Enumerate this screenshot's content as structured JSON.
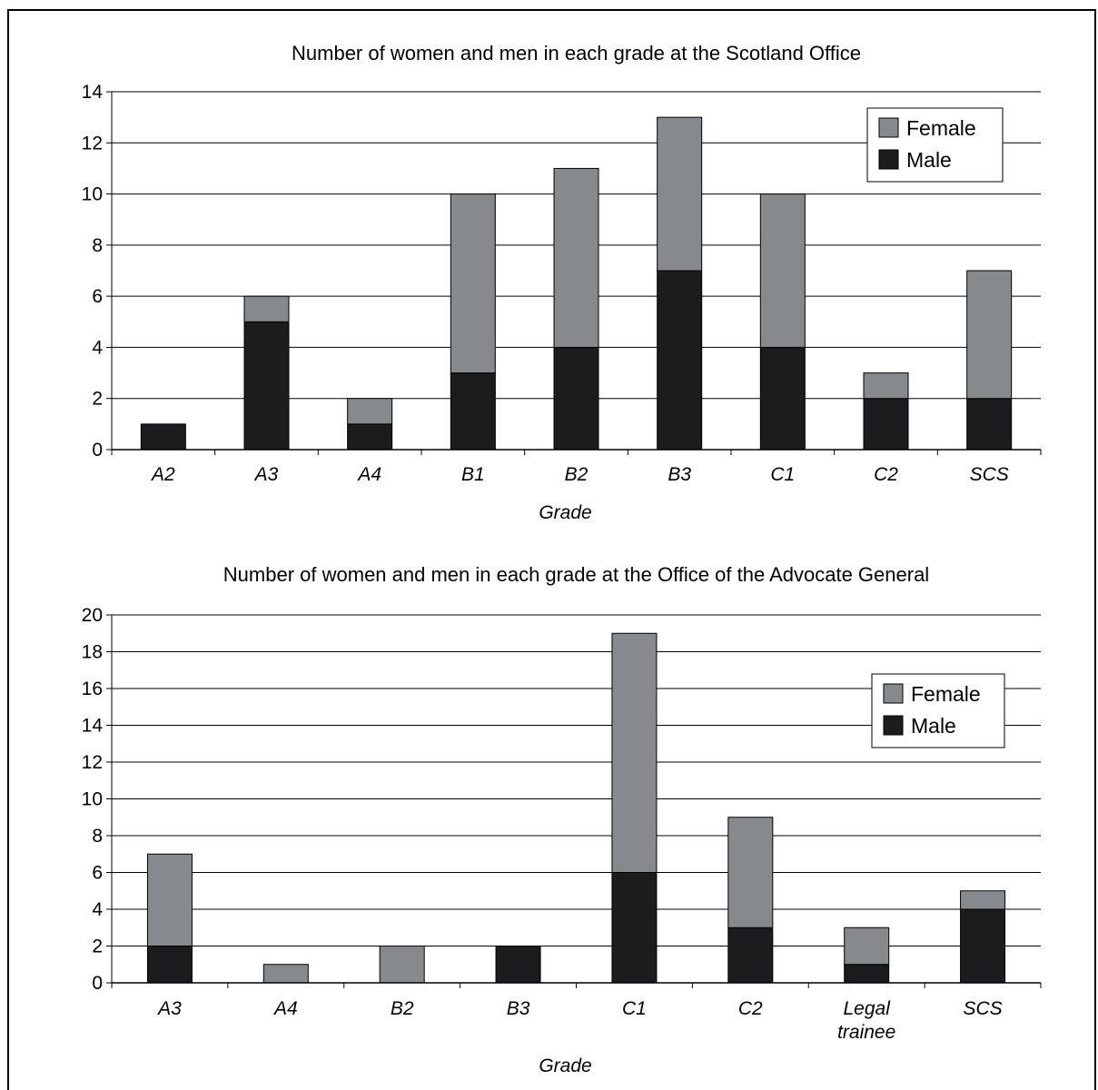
{
  "colors": {
    "female": "#878a8c",
    "male": "#1c1b1d",
    "grid": "#000000",
    "background": "#ffffff"
  },
  "chart_data": [
    {
      "type": "bar",
      "stacked": true,
      "title": "Number of women and men in each grade at the Scotland Office",
      "xlabel": "Grade",
      "ylabel": "",
      "ylim": [
        0,
        14
      ],
      "yticks": [
        0,
        2,
        4,
        6,
        8,
        10,
        12,
        14
      ],
      "grid": true,
      "legend_position": "top-right",
      "categories": [
        "A2",
        "A3",
        "A4",
        "B1",
        "B2",
        "B3",
        "C1",
        "C2",
        "SCS"
      ],
      "series": [
        {
          "name": "Male",
          "color": "#1c1b1d",
          "values": [
            1,
            5,
            1,
            3,
            4,
            7,
            4,
            2,
            2
          ]
        },
        {
          "name": "Female",
          "color": "#878a8c",
          "values": [
            0,
            1,
            1,
            7,
            7,
            6,
            6,
            1,
            5
          ]
        }
      ],
      "legend": [
        "Female",
        "Male"
      ]
    },
    {
      "type": "bar",
      "stacked": true,
      "title": "Number of women and men in each grade at the Office of the Advocate General",
      "xlabel": "Grade",
      "ylabel": "",
      "ylim": [
        0,
        20
      ],
      "yticks": [
        0,
        2,
        4,
        6,
        8,
        10,
        12,
        14,
        16,
        18,
        20
      ],
      "grid": true,
      "legend_position": "top-right",
      "categories": [
        "A3",
        "A4",
        "B2",
        "B3",
        "C1",
        "C2",
        "Legal trainee",
        "SCS"
      ],
      "category_lines": [
        [
          "A3"
        ],
        [
          "A4"
        ],
        [
          "B2"
        ],
        [
          "B3"
        ],
        [
          "C1"
        ],
        [
          "C2"
        ],
        [
          "Legal",
          "trainee"
        ],
        [
          "SCS"
        ]
      ],
      "series": [
        {
          "name": "Male",
          "color": "#1c1b1d",
          "values": [
            2,
            0,
            0,
            2,
            6,
            3,
            1,
            4
          ]
        },
        {
          "name": "Female",
          "color": "#878a8c",
          "values": [
            5,
            1,
            2,
            0,
            13,
            6,
            2,
            1
          ]
        }
      ],
      "legend": [
        "Female",
        "Male"
      ]
    }
  ]
}
